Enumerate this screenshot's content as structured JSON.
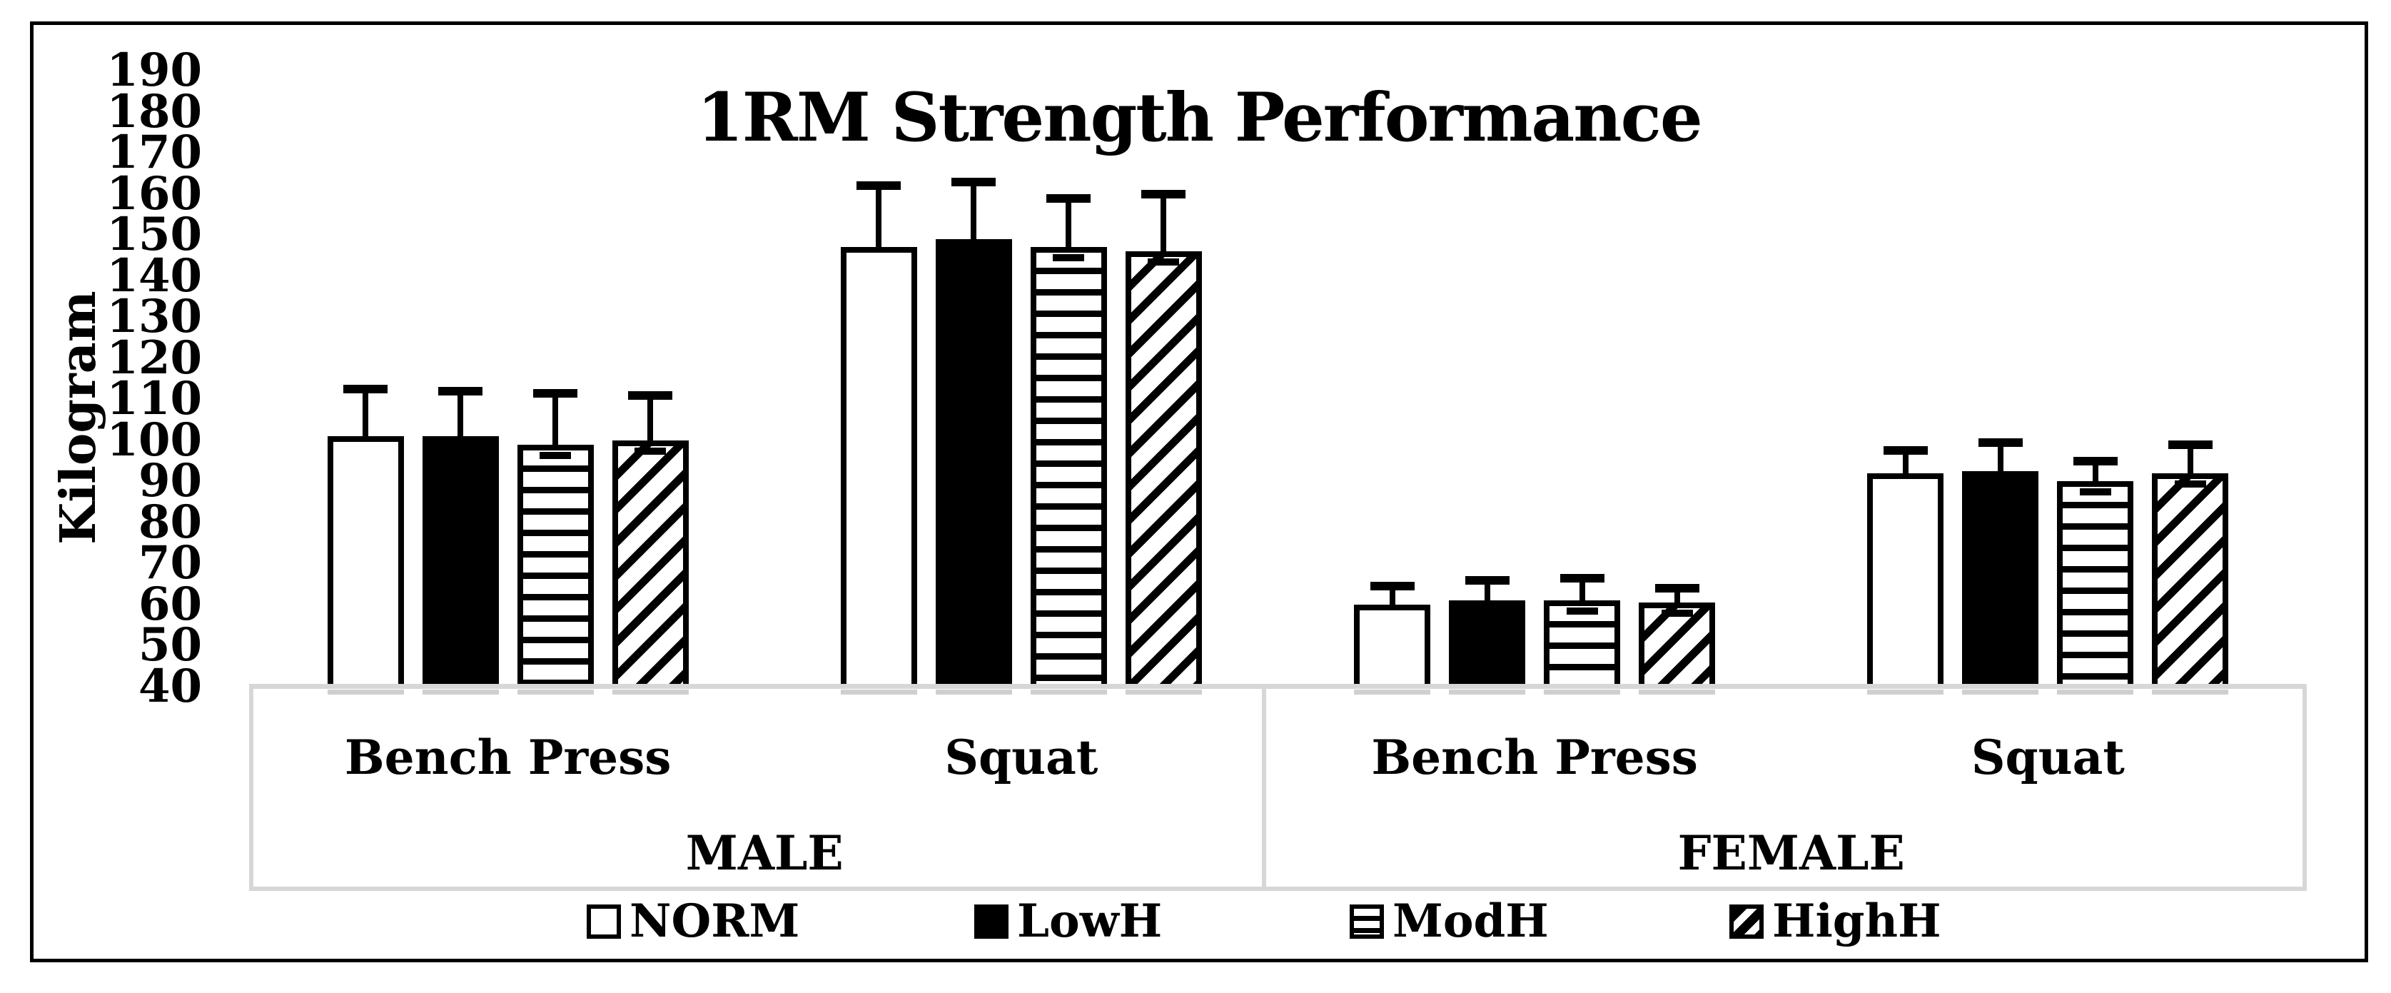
{
  "title": "1RM Strength Performance",
  "y_axis": {
    "label": "Kilogram"
  },
  "chart_data": {
    "type": "bar",
    "title": "1RM Strength Performance",
    "xlabel": "",
    "ylabel": "Kilogram",
    "ylim": [
      40,
      190
    ],
    "y_tick_step": 10,
    "y_ticks": [
      190,
      180,
      170,
      160,
      150,
      140,
      130,
      120,
      110,
      100,
      90,
      80,
      70,
      60,
      50,
      40
    ],
    "grid": false,
    "legend_position": "bottom",
    "series": [
      {
        "name": "NORM",
        "pattern": "plain"
      },
      {
        "name": "LowH",
        "pattern": "solid"
      },
      {
        "name": "ModH",
        "pattern": "hstripe"
      },
      {
        "name": "HighH",
        "pattern": "dstripe"
      }
    ],
    "groups": [
      {
        "label": "MALE",
        "categories": [
          {
            "label": "Bench Press",
            "values": [
              101,
              101,
              99,
              100
            ],
            "error_plus": [
              12.5,
              12,
              13.5,
              12
            ]
          },
          {
            "label": "Squat",
            "values": [
              147,
              149,
              147,
              146
            ],
            "error_plus": [
              16,
              15,
              13,
              15
            ]
          }
        ]
      },
      {
        "label": "FEMALE",
        "categories": [
          {
            "label": "Bench Press",
            "values": [
              60,
              61,
              61,
              60.5
            ],
            "error_plus": [
              5.5,
              6,
              6.5,
              4.5
            ]
          },
          {
            "label": "Squat",
            "values": [
              92,
              92.5,
              90,
              92
            ],
            "error_plus": [
              6.5,
              8,
              6,
              8
            ]
          }
        ]
      }
    ]
  }
}
